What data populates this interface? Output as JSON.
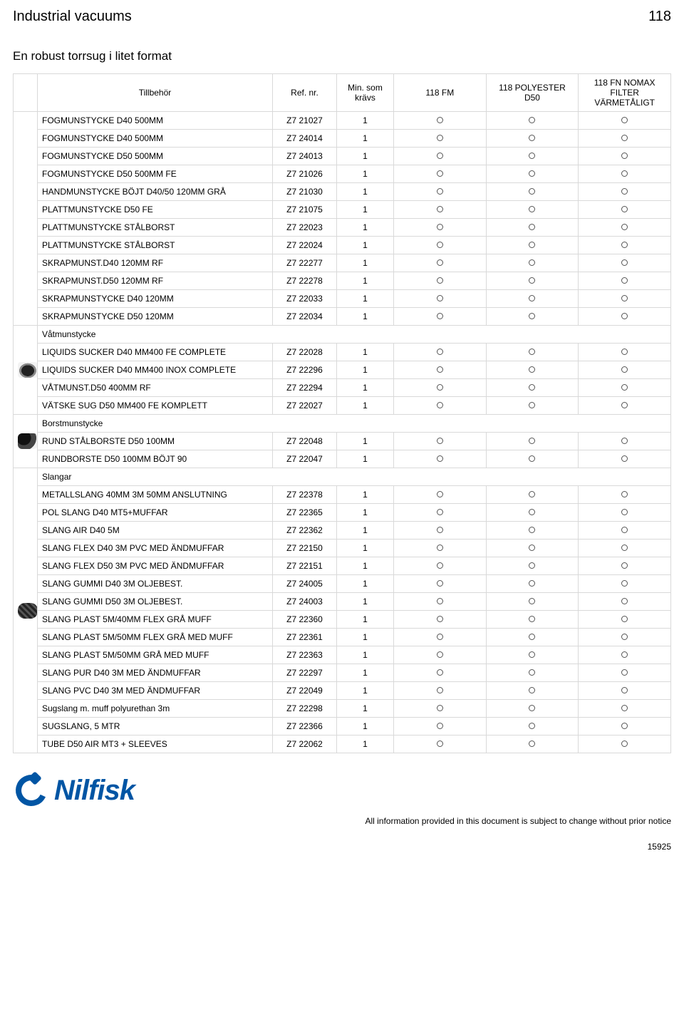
{
  "header": {
    "category": "Industrial vacuums",
    "model_number": "118"
  },
  "subtitle": "En robust torrsug i litet format",
  "columns": {
    "accessory": "Tillbehör",
    "ref": "Ref. nr.",
    "min_req": "Min. som krävs",
    "v1": "118 FM",
    "v2": "118 POLYESTER D50",
    "v3": "118 FN NOMAX FILTER VÄRMETÅLIGT"
  },
  "marker": "○",
  "sections": [
    {
      "thumb": "",
      "title": "",
      "rows": [
        {
          "name": "FOGMUNSTYCKE D40 500MM",
          "ref": "Z7 21027",
          "min": "1",
          "c": [
            1,
            1,
            1
          ]
        },
        {
          "name": "FOGMUNSTYCKE D40 500MM",
          "ref": "Z7 24014",
          "min": "1",
          "c": [
            1,
            1,
            1
          ]
        },
        {
          "name": "FOGMUNSTYCKE D50 500MM",
          "ref": "Z7 24013",
          "min": "1",
          "c": [
            1,
            1,
            1
          ]
        },
        {
          "name": "FOGMUNSTYCKE D50 500MM FE",
          "ref": "Z7 21026",
          "min": "1",
          "c": [
            1,
            1,
            1
          ]
        },
        {
          "name": "HANDMUNSTYCKE BÖJT D40/50 120MM GRÅ",
          "ref": "Z7 21030",
          "min": "1",
          "c": [
            1,
            1,
            1
          ]
        },
        {
          "name": "PLATTMUNSTYCKE D50 FE",
          "ref": "Z7 21075",
          "min": "1",
          "c": [
            1,
            1,
            1
          ]
        },
        {
          "name": "PLATTMUNSTYCKE STÅLBORST",
          "ref": "Z7 22023",
          "min": "1",
          "c": [
            1,
            1,
            1
          ]
        },
        {
          "name": "PLATTMUNSTYCKE STÅLBORST",
          "ref": "Z7 22024",
          "min": "1",
          "c": [
            1,
            1,
            1
          ]
        },
        {
          "name": "SKRAPMUNST.D40 120MM RF",
          "ref": "Z7 22277",
          "min": "1",
          "c": [
            1,
            1,
            1
          ]
        },
        {
          "name": "SKRAPMUNST.D50 120MM RF",
          "ref": "Z7 22278",
          "min": "1",
          "c": [
            1,
            1,
            1
          ]
        },
        {
          "name": "SKRAPMUNSTYCKE D40 120MM",
          "ref": "Z7 22033",
          "min": "1",
          "c": [
            1,
            1,
            1
          ]
        },
        {
          "name": "SKRAPMUNSTYCKE D50 120MM",
          "ref": "Z7 22034",
          "min": "1",
          "c": [
            1,
            1,
            1
          ]
        }
      ]
    },
    {
      "thumb": "nozzle",
      "title": "Våtmunstycke",
      "rows": [
        {
          "name": "LIQUIDS SUCKER D40 MM400 FE COMPLETE",
          "ref": "Z7 22028",
          "min": "1",
          "c": [
            1,
            1,
            1
          ]
        },
        {
          "name": "LIQUIDS SUCKER D40 MM400 INOX COMPLETE",
          "ref": "Z7 22296",
          "min": "1",
          "c": [
            1,
            1,
            1
          ]
        },
        {
          "name": "VÅTMUNST.D50 400MM RF",
          "ref": "Z7 22294",
          "min": "1",
          "c": [
            1,
            1,
            1
          ]
        },
        {
          "name": "VÄTSKE SUG D50 MM400 FE KOMPLETT",
          "ref": "Z7 22027",
          "min": "1",
          "c": [
            1,
            1,
            1
          ]
        }
      ]
    },
    {
      "thumb": "elbow",
      "title": "Borstmunstycke",
      "rows": [
        {
          "name": "RUND STÅLBORSTE D50 100MM",
          "ref": "Z7 22048",
          "min": "1",
          "c": [
            1,
            1,
            1
          ]
        },
        {
          "name": "RUNDBORSTE D50 100MM BÖJT 90",
          "ref": "Z7 22047",
          "min": "1",
          "c": [
            1,
            1,
            1
          ]
        }
      ]
    },
    {
      "thumb": "hose",
      "title": "Slangar",
      "rows": [
        {
          "name": "METALLSLANG 40MM 3M 50MM ANSLUTNING",
          "ref": "Z7 22378",
          "min": "1",
          "c": [
            1,
            1,
            1
          ]
        },
        {
          "name": "POL SLANG D40 MT5+MUFFAR",
          "ref": "Z7 22365",
          "min": "1",
          "c": [
            1,
            1,
            1
          ]
        },
        {
          "name": "SLANG AIR D40 5M",
          "ref": "Z7 22362",
          "min": "1",
          "c": [
            1,
            1,
            1
          ]
        },
        {
          "name": "SLANG FLEX D40 3M PVC MED ÄNDMUFFAR",
          "ref": "Z7 22150",
          "min": "1",
          "c": [
            1,
            1,
            1
          ]
        },
        {
          "name": "SLANG FLEX D50 3M PVC MED ÄNDMUFFAR",
          "ref": "Z7 22151",
          "min": "1",
          "c": [
            1,
            1,
            1
          ]
        },
        {
          "name": "SLANG GUMMI D40 3M OLJEBEST.",
          "ref": "Z7 24005",
          "min": "1",
          "c": [
            1,
            1,
            1
          ]
        },
        {
          "name": "SLANG GUMMI D50 3M OLJEBEST.",
          "ref": "Z7 24003",
          "min": "1",
          "c": [
            1,
            1,
            1
          ]
        },
        {
          "name": "SLANG PLAST 5M/40MM FLEX GRÅ MUFF",
          "ref": "Z7 22360",
          "min": "1",
          "c": [
            1,
            1,
            1
          ]
        },
        {
          "name": "SLANG PLAST 5M/50MM FLEX GRÅ MED MUFF",
          "ref": "Z7 22361",
          "min": "1",
          "c": [
            1,
            1,
            1
          ]
        },
        {
          "name": "SLANG PLAST 5M/50MM GRÅ MED MUFF",
          "ref": "Z7 22363",
          "min": "1",
          "c": [
            1,
            1,
            1
          ]
        },
        {
          "name": "SLANG PUR D40 3M MED ÄNDMUFFAR",
          "ref": "Z7 22297",
          "min": "1",
          "c": [
            1,
            1,
            1
          ]
        },
        {
          "name": "SLANG PVC D40 3M MED ÄNDMUFFAR",
          "ref": "Z7 22049",
          "min": "1",
          "c": [
            1,
            1,
            1
          ]
        },
        {
          "name": "Sugslang m. muff polyurethan 3m",
          "ref": "Z7 22298",
          "min": "1",
          "c": [
            1,
            1,
            1
          ]
        },
        {
          "name": "SUGSLANG, 5 MTR",
          "ref": "Z7 22366",
          "min": "1",
          "c": [
            1,
            1,
            1
          ]
        },
        {
          "name": "TUBE D50 AIR MT3 + SLEEVES",
          "ref": "Z7 22062",
          "min": "1",
          "c": [
            1,
            1,
            1
          ]
        }
      ]
    }
  ],
  "logo_text": "Nilfisk",
  "footer_note": "All information provided in this document is subject to change without prior notice",
  "footer_page": "15925"
}
